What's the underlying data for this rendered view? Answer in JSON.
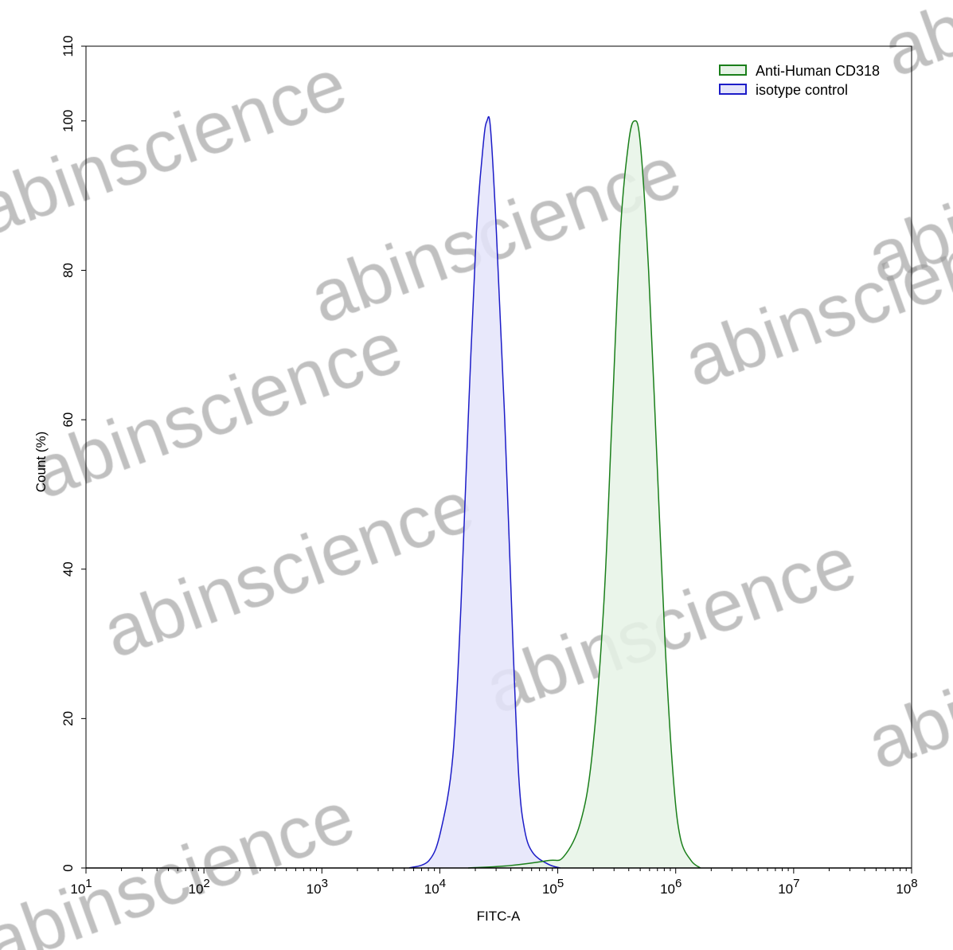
{
  "chart_data": {
    "type": "area",
    "title": "",
    "xlabel": "FITC-A",
    "ylabel": "Count  (%)",
    "xscale": "log",
    "xlim": [
      10,
      100000000
    ],
    "ylim": [
      0,
      110
    ],
    "x_ticks": [
      {
        "base": "10",
        "exp": "1"
      },
      {
        "base": "10",
        "exp": "2"
      },
      {
        "base": "10",
        "exp": "3"
      },
      {
        "base": "10",
        "exp": "4"
      },
      {
        "base": "10",
        "exp": "5"
      },
      {
        "base": "10",
        "exp": "6"
      },
      {
        "base": "10",
        "exp": "7"
      },
      {
        "base": "10",
        "exp": "8"
      }
    ],
    "y_ticks": [
      "0",
      "20",
      "40",
      "60",
      "80",
      "100",
      "110"
    ],
    "grid": false,
    "legend_position": "top-right",
    "series": [
      {
        "name": "Anti-Human CD318",
        "color": "#1a7f1a",
        "fill": "#e6f3e6",
        "x": [
          17400,
          38000,
          83200,
          112000,
          155000,
          195000,
          245000,
          288000,
          339000,
          398000,
          447000,
          501000,
          589000,
          692000,
          813000,
          955000,
          1096000,
          1349000,
          1622000
        ],
        "y": [
          0,
          0.3,
          1,
          1.5,
          6,
          15,
          35,
          60,
          85,
          97,
          100,
          97,
          80,
          55,
          30,
          12,
          4,
          1,
          0
        ]
      },
      {
        "name": "isotype control",
        "color": "#1c1cc8",
        "fill": "#e4e4fa",
        "x": [
          5500,
          8100,
          10200,
          12900,
          15100,
          17400,
          20400,
          23400,
          25100,
          26900,
          30200,
          35500,
          41700,
          46800,
          52500,
          61700,
          83200,
          105000
        ],
        "y": [
          0,
          1,
          5,
          15,
          35,
          60,
          85,
          97,
          100,
          99,
          85,
          60,
          30,
          12,
          5,
          2,
          0.5,
          0
        ]
      }
    ]
  },
  "watermark": "abinscience"
}
